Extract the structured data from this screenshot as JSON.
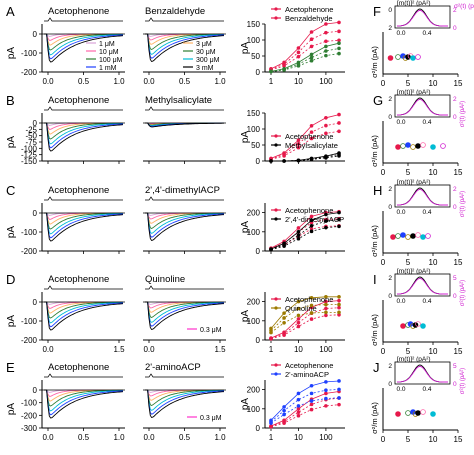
{
  "colors": {
    "traces": [
      "#d9a4d9",
      "#ff66aa",
      "#2e7d32",
      "#1e40ff",
      "#000000"
    ],
    "acetophenone": "#e6194b",
    "row_b": "#000000",
    "row_d": "#9c7a00",
    "row_e": "#1e40ff",
    "var_black": "#000000",
    "var_magenta": "#d020d0"
  },
  "rows": [
    {
      "letter": "A",
      "right_letter": "F",
      "odorant1": "Acetophenone",
      "odorant2": "Benzaldehyde",
      "legend_left": [
        "1 μM",
        "10 μM",
        "100 μM",
        "1 mM"
      ],
      "legend_right": [
        "3 μM",
        "30 μM",
        "300 μM",
        "3 mM"
      ],
      "y_ticks": [
        "0",
        "-100",
        "-200"
      ],
      "x_ticks": [
        "0.0",
        "0.5",
        "1.0"
      ],
      "dose_legend": [
        "Acetophenone",
        "Benzaldehyde"
      ],
      "dose_y_ticks": [
        "0",
        "50",
        "100",
        "150"
      ],
      "dose_x_ticks": [
        "1",
        "10",
        "100"
      ],
      "inset_y_ticks": [
        "0",
        "2"
      ],
      "inset_right_ticks": [
        "2",
        "0"
      ],
      "inset_x_ticks": [
        "0.0",
        "0.4"
      ]
    },
    {
      "letter": "B",
      "right_letter": "G",
      "odorant1": "Acetophenone",
      "odorant2": "Methylsalicylate",
      "y_ticks": [
        "0",
        "-25",
        "-50",
        "-75",
        "-100",
        "-125",
        "-150"
      ],
      "x_ticks": [],
      "dose_legend": [
        "Acetophenone",
        "Methylsalicylate"
      ],
      "dose_y_ticks": [
        "0",
        "50",
        "100",
        "150"
      ],
      "dose_x_ticks": [],
      "inset_y_ticks": [
        "2",
        "0"
      ],
      "inset_right_ticks": [
        "2",
        "0"
      ],
      "inset_x_ticks": [
        "0.0",
        "0.4"
      ]
    },
    {
      "letter": "C",
      "right_letter": "H",
      "odorant1": "Acetophenone",
      "odorant2": "2',4'-dimethylACP",
      "y_ticks": [
        "0",
        "-100",
        "-200"
      ],
      "x_ticks": [],
      "dose_legend": [
        "Acetophenone",
        "2',4'-dimethylACP"
      ],
      "dose_y_ticks": [
        "0",
        "100",
        "200"
      ],
      "dose_x_ticks": [],
      "inset_y_ticks": [
        "2",
        "0"
      ],
      "inset_right_ticks": [
        "2",
        "0"
      ],
      "inset_x_ticks": [
        "0.0",
        "0.4"
      ]
    },
    {
      "letter": "D",
      "right_letter": "I",
      "odorant1": "Acetophenone",
      "odorant2": "Quinoline",
      "inset_legend": "0.3 μM",
      "y_ticks": [
        "0",
        "-100",
        "-200"
      ],
      "x_ticks": [
        "0.0",
        "1.5"
      ],
      "x_ticks_2": [
        "0.0",
        "1.5"
      ],
      "dose_legend": [
        "Acetophenone",
        "Quinoline"
      ],
      "dose_y_ticks": [
        "0",
        "100",
        "200"
      ],
      "dose_x_ticks": [
        "1",
        "10",
        "100"
      ],
      "inset_y_ticks": [
        "2",
        "0"
      ],
      "inset_right_ticks": [
        "5",
        "0"
      ],
      "inset_x_ticks": [
        "0.0",
        "0.4"
      ]
    },
    {
      "letter": "E",
      "right_letter": "J",
      "odorant1": "Acetophenone",
      "odorant2": "2'-aminoACP",
      "inset_legend": "0.3 μM",
      "y_ticks": [
        "0",
        "-100",
        "-200",
        "-300"
      ],
      "x_ticks": [
        "0.0",
        "0.5",
        "1.0"
      ],
      "dose_legend": [
        "Acetophenone",
        "2'-aminoACP"
      ],
      "dose_y_ticks": [
        "0",
        "100",
        "200"
      ],
      "dose_x_ticks": [
        "1",
        "10",
        "100"
      ],
      "inset_y_ticks": [
        "2",
        "0"
      ],
      "inset_right_ticks": [
        "5",
        "0"
      ],
      "inset_x_ticks": [
        "0.0",
        "0.4"
      ]
    }
  ],
  "labels": {
    "pA": "pA",
    "inset_left_label": "[m(t)]² (pA²)",
    "inset_right_label": "σ²(t) (pA²)",
    "var_ylabel": "σ²/m (pA)"
  },
  "var_x_ticks": [
    "0",
    "5",
    "10",
    "15"
  ],
  "chart_data": [
    {
      "type": "line",
      "panel": "A-left",
      "ylabel": "pA",
      "ylim": [
        -200,
        20
      ],
      "xlim": [
        0,
        1.0
      ],
      "series": [
        {
          "name": "1 μM",
          "peak": -30
        },
        {
          "name": "10 μM",
          "peak": -70
        },
        {
          "name": "100 μM",
          "peak": -120
        },
        {
          "name": "1 mM",
          "peak": -180
        }
      ]
    },
    {
      "type": "line",
      "panel": "A-right",
      "ylim": [
        -200,
        20
      ],
      "xlim": [
        0,
        1.0
      ],
      "series": [
        {
          "name": "3 μM",
          "peak": -25
        },
        {
          "name": "30 μM",
          "peak": -80
        },
        {
          "name": "300 μM",
          "peak": -140
        },
        {
          "name": "3 mM",
          "peak": -190
        }
      ]
    },
    {
      "type": "scatter",
      "panel": "A-dose",
      "ylabel": "pA",
      "ylim": [
        0,
        150
      ],
      "log_x": true,
      "x": [
        1,
        3,
        10,
        30,
        100,
        300
      ],
      "series": [
        {
          "name": "Acetophenone",
          "values": [
            10,
            30,
            75,
            125,
            150,
            155
          ]
        },
        {
          "name": "Benzaldehyde",
          "values": [
            2,
            10,
            30,
            55,
            80,
            90
          ]
        }
      ]
    },
    {
      "type": "scatter",
      "panel": "B-dose",
      "ylabel": "pA",
      "ylim": [
        0,
        150
      ],
      "log_x": true,
      "x": [
        1,
        3,
        10,
        30,
        100,
        300
      ],
      "series": [
        {
          "name": "Acetophenone",
          "values": [
            8,
            25,
            65,
            110,
            135,
            145
          ]
        },
        {
          "name": "Methylsalicylate",
          "values": [
            0,
            0,
            2,
            8,
            15,
            25
          ]
        }
      ]
    },
    {
      "type": "scatter",
      "panel": "C-dose",
      "ylabel": "pA",
      "ylim": [
        0,
        250
      ],
      "log_x": true,
      "x": [
        1,
        3,
        10,
        30,
        100,
        300
      ],
      "series": [
        {
          "name": "Acetophenone",
          "values": [
            15,
            50,
            120,
            180,
            200,
            205
          ]
        },
        {
          "name": "2',4'-dimethylACP",
          "values": [
            10,
            40,
            100,
            160,
            190,
            200
          ]
        }
      ]
    },
    {
      "type": "scatter",
      "panel": "D-dose",
      "ylabel": "pA",
      "ylim": [
        0,
        250
      ],
      "log_x": true,
      "x": [
        1,
        3,
        10,
        30,
        100,
        300
      ],
      "series": [
        {
          "name": "Acetophenone",
          "values": [
            10,
            40,
            110,
            170,
            200,
            205
          ]
        },
        {
          "name": "Quinoline",
          "values": [
            60,
            140,
            200,
            220,
            225,
            225
          ]
        }
      ]
    },
    {
      "type": "scatter",
      "panel": "E-dose",
      "ylabel": "pA",
      "ylim": [
        0,
        250
      ],
      "log_x": true,
      "x": [
        1,
        3,
        10,
        30,
        100,
        300
      ],
      "series": [
        {
          "name": "Acetophenone",
          "values": [
            10,
            40,
            100,
            150,
            180,
            190
          ]
        },
        {
          "name": "2'-aminoACP",
          "values": [
            40,
            110,
            180,
            220,
            240,
            245
          ]
        }
      ]
    },
    {
      "type": "scatter",
      "panel": "F-J-variance",
      "ylabel": "σ²/m (pA)",
      "xlim": [
        0,
        15
      ],
      "points": [
        {
          "panel": "F",
          "values": [
            1.5,
            3,
            4,
            4.5,
            5,
            5.5,
            6,
            7
          ]
        },
        {
          "panel": "G",
          "values": [
            3,
            4,
            5,
            6,
            7,
            8,
            10,
            12
          ]
        },
        {
          "panel": "H",
          "values": [
            2,
            3,
            4,
            5,
            6,
            7,
            8,
            9
          ]
        },
        {
          "panel": "I",
          "values": [
            4,
            5,
            5.5,
            6,
            6.5,
            7,
            8
          ]
        },
        {
          "panel": "J",
          "values": [
            3,
            5,
            6,
            6.5,
            7,
            8,
            10
          ]
        }
      ]
    }
  ]
}
